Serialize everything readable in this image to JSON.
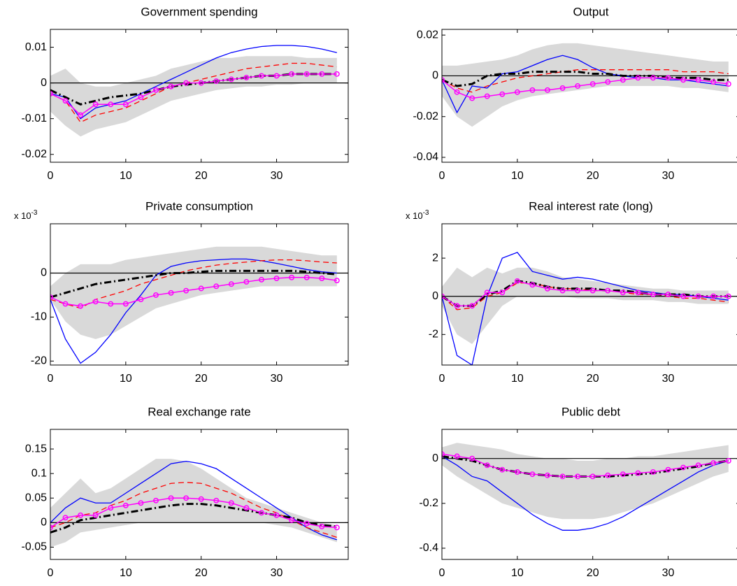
{
  "chart_data": [
    {
      "type": "line",
      "title": "Government spending",
      "x": [
        0,
        2,
        4,
        6,
        8,
        10,
        12,
        14,
        16,
        18,
        20,
        22,
        24,
        26,
        28,
        30,
        32,
        34,
        36,
        38
      ],
      "xlim": [
        0,
        39.5
      ],
      "xticks": [
        0,
        10,
        20,
        30
      ],
      "ylim": [
        -0.0222,
        0.015
      ],
      "yticks": [
        -0.02,
        -0.01,
        0,
        0.01
      ],
      "reference_line": 0,
      "band": {
        "color": "#d9d9d9",
        "lower": [
          -0.008,
          -0.012,
          -0.015,
          -0.013,
          -0.012,
          -0.011,
          -0.009,
          -0.007,
          -0.005,
          -0.004,
          -0.003,
          -0.002,
          -0.0015,
          -0.001,
          -0.001,
          -0.0005,
          -0.0005,
          0,
          0,
          0
        ],
        "upper": [
          0.002,
          0.004,
          0,
          -0.001,
          -0.001,
          0,
          0.001,
          0.002,
          0.004,
          0.005,
          0.006,
          0.007,
          0.007,
          0.0075,
          0.0075,
          0.0075,
          0.0075,
          0.007,
          0.007,
          0.007
        ]
      },
      "series": [
        {
          "color": "#0000ff",
          "style": "solid",
          "values": [
            -0.003,
            -0.004,
            -0.01,
            -0.007,
            -0.006,
            -0.005,
            -0.003,
            -0.001,
            0.001,
            0.003,
            0.005,
            0.007,
            0.0085,
            0.0095,
            0.0102,
            0.0105,
            0.0105,
            0.0102,
            0.0095,
            0.0085
          ]
        },
        {
          "color": "#ff0000",
          "style": "dashed",
          "values": [
            -0.003,
            -0.005,
            -0.011,
            -0.009,
            -0.008,
            -0.007,
            -0.005,
            -0.003,
            -0.001,
            0,
            0.001,
            0.002,
            0.003,
            0.004,
            0.0045,
            0.005,
            0.0055,
            0.0055,
            0.005,
            0.0045
          ]
        },
        {
          "color": "#000000",
          "style": "dashdot",
          "values": [
            -0.002,
            -0.004,
            -0.006,
            -0.005,
            -0.004,
            -0.0035,
            -0.003,
            -0.002,
            -0.001,
            -0.0005,
            0,
            0.0005,
            0.001,
            0.0015,
            0.002,
            0.002,
            0.0025,
            0.0025,
            0.0025,
            0.0025
          ]
        },
        {
          "color": "#ff00ff",
          "style": "markers",
          "values": [
            -0.003,
            -0.005,
            -0.009,
            -0.006,
            -0.006,
            -0.006,
            -0.004,
            -0.002,
            -0.001,
            0,
            0,
            0.0005,
            0.001,
            0.0015,
            0.002,
            0.002,
            0.0025,
            0.0025,
            0.0025,
            0.0025
          ]
        }
      ]
    },
    {
      "type": "line",
      "title": "Output",
      "x": [
        0,
        2,
        4,
        6,
        8,
        10,
        12,
        14,
        16,
        18,
        20,
        22,
        24,
        26,
        28,
        30,
        32,
        34,
        36,
        38
      ],
      "xlim": [
        0,
        39.5
      ],
      "xticks": [
        0,
        10,
        20,
        30
      ],
      "ylim": [
        -0.0424,
        0.0228
      ],
      "yticks": [
        -0.04,
        -0.02,
        0,
        0.02
      ],
      "reference_line": 0,
      "band": {
        "color": "#d9d9d9",
        "lower": [
          -0.01,
          -0.02,
          -0.025,
          -0.02,
          -0.015,
          -0.012,
          -0.01,
          -0.009,
          -0.008,
          -0.007,
          -0.006,
          -0.005,
          -0.005,
          -0.005,
          -0.005,
          -0.005,
          -0.006,
          -0.006,
          -0.007,
          -0.008
        ],
        "upper": [
          0.005,
          0.005,
          0.006,
          0.007,
          0.008,
          0.01,
          0.013,
          0.015,
          0.016,
          0.016,
          0.015,
          0.014,
          0.013,
          0.012,
          0.011,
          0.01,
          0.009,
          0.008,
          0.007,
          0.007
        ]
      },
      "series": [
        {
          "color": "#0000ff",
          "style": "solid",
          "values": [
            -0.002,
            -0.018,
            -0.005,
            -0.006,
            0.001,
            0.002,
            0.005,
            0.008,
            0.01,
            0.008,
            0.004,
            0.001,
            0,
            -0.001,
            -0.001,
            -0.002,
            -0.002,
            -0.003,
            -0.004,
            -0.005
          ]
        },
        {
          "color": "#ff0000",
          "style": "dashed",
          "values": [
            -0.002,
            -0.006,
            -0.008,
            -0.005,
            -0.003,
            -0.001,
            0,
            0.001,
            0.002,
            0.003,
            0.003,
            0.003,
            0.003,
            0.003,
            0.003,
            0.003,
            0.002,
            0.002,
            0.002,
            0.001
          ]
        },
        {
          "color": "#000000",
          "style": "dashdot",
          "values": [
            -0.002,
            -0.005,
            -0.004,
            0,
            0.001,
            0.001,
            0.002,
            0.002,
            0.002,
            0.002,
            0.001,
            0.001,
            0,
            0,
            0,
            -0.001,
            -0.001,
            -0.001,
            -0.002,
            -0.002
          ]
        },
        {
          "color": "#ff00ff",
          "style": "markers",
          "values": [
            -0.002,
            -0.008,
            -0.011,
            -0.01,
            -0.009,
            -0.008,
            -0.007,
            -0.007,
            -0.006,
            -0.005,
            -0.004,
            -0.003,
            -0.002,
            -0.001,
            -0.001,
            -0.001,
            -0.002,
            -0.002,
            -0.003,
            -0.004
          ]
        }
      ]
    },
    {
      "type": "line",
      "title": "Private consumption",
      "axis_multiplier": {
        "base": "x 10",
        "exponent": "-3"
      },
      "x": [
        0,
        2,
        4,
        6,
        8,
        10,
        12,
        14,
        16,
        18,
        20,
        22,
        24,
        26,
        28,
        30,
        32,
        34,
        36,
        38
      ],
      "xlim": [
        0,
        39.5
      ],
      "xticks": [
        0,
        10,
        20,
        30
      ],
      "ylim": [
        -20.9,
        11.2
      ],
      "yticks": [
        -20,
        -10,
        0
      ],
      "reference_line": 0,
      "band": {
        "color": "#d9d9d9",
        "lower": [
          -6,
          -11,
          -14,
          -15,
          -14,
          -12,
          -10,
          -8,
          -7,
          -6,
          -5,
          -4.5,
          -4,
          -3.5,
          -3,
          -3,
          -3,
          -3,
          -3,
          -3
        ],
        "upper": [
          -3,
          0,
          2,
          2,
          2,
          3,
          3.5,
          4,
          4.5,
          5,
          5.5,
          6,
          6,
          6,
          6,
          5.5,
          5,
          4.5,
          4,
          4
        ]
      },
      "series": [
        {
          "color": "#0000ff",
          "style": "solid",
          "values": [
            -6,
            -15,
            -20.5,
            -18,
            -14,
            -9,
            -5,
            -0.5,
            1.5,
            2.3,
            2.8,
            3,
            3.2,
            3.2,
            2.8,
            2.2,
            1.5,
            0.8,
            0.3,
            0
          ]
        },
        {
          "color": "#ff0000",
          "style": "dashed",
          "values": [
            -6,
            -7,
            -8,
            -6,
            -5,
            -4,
            -2.5,
            -1.5,
            -0.5,
            0.5,
            1.2,
            1.8,
            2.2,
            2.5,
            2.8,
            3,
            3,
            2.8,
            2.5,
            2.3
          ]
        },
        {
          "color": "#000000",
          "style": "dashdot",
          "values": [
            -5.5,
            -4.5,
            -3.5,
            -2.5,
            -2,
            -1.5,
            -1,
            -0.5,
            0,
            0,
            0.3,
            0.5,
            0.5,
            0.5,
            0.5,
            0.5,
            0.5,
            0.3,
            0,
            -0.3
          ]
        },
        {
          "color": "#ff00ff",
          "style": "markers",
          "values": [
            -5.5,
            -7,
            -7.5,
            -6.5,
            -7,
            -7,
            -6,
            -5,
            -4.5,
            -4,
            -3.5,
            -3,
            -2.5,
            -2,
            -1.5,
            -1.2,
            -1,
            -1,
            -1.2,
            -1.7
          ]
        }
      ]
    },
    {
      "type": "line",
      "title": "Real interest rate (long)",
      "axis_multiplier": {
        "base": "x 10",
        "exponent": "-3"
      },
      "x": [
        0,
        2,
        4,
        6,
        8,
        10,
        12,
        14,
        16,
        18,
        20,
        22,
        24,
        26,
        28,
        30,
        32,
        34,
        36,
        38
      ],
      "xlim": [
        0,
        39.5
      ],
      "xticks": [
        0,
        10,
        20,
        30
      ],
      "ylim": [
        -3.6,
        3.8
      ],
      "yticks": [
        -2,
        0,
        2
      ],
      "reference_line": 0,
      "band": {
        "color": "#d9d9d9",
        "lower": [
          -0.5,
          -2,
          -2.5,
          -1.5,
          -0.5,
          0,
          0,
          0,
          0,
          -0.1,
          -0.1,
          -0.1,
          -0.2,
          -0.2,
          -0.2,
          -0.3,
          -0.3,
          -0.4,
          -0.4,
          -0.4
        ],
        "upper": [
          0.5,
          1.5,
          1,
          1.5,
          1.2,
          1.5,
          1.5,
          1.3,
          1,
          0.9,
          0.8,
          0.7,
          0.6,
          0.5,
          0.4,
          0.4,
          0.3,
          0.3,
          0.3,
          0.3
        ]
      },
      "series": [
        {
          "color": "#0000ff",
          "style": "solid",
          "values": [
            0,
            -3.1,
            -3.6,
            0,
            2,
            2.3,
            1.3,
            1.1,
            0.9,
            1,
            0.9,
            0.7,
            0.5,
            0.3,
            0.2,
            0.1,
            0.1,
            0,
            -0.1,
            -0.2
          ]
        },
        {
          "color": "#ff0000",
          "style": "dashed",
          "values": [
            0,
            -0.7,
            -0.6,
            0,
            0.2,
            0.7,
            0.7,
            0.5,
            0.4,
            0.4,
            0.3,
            0.3,
            0.2,
            0.1,
            0.1,
            0,
            -0.1,
            -0.1,
            -0.2,
            -0.3
          ]
        },
        {
          "color": "#000000",
          "style": "dashdot",
          "values": [
            0,
            -0.5,
            -0.5,
            0.1,
            0.3,
            0.8,
            0.7,
            0.5,
            0.4,
            0.4,
            0.4,
            0.3,
            0.3,
            0.2,
            0.1,
            0.1,
            0.1,
            0,
            0,
            0
          ]
        },
        {
          "color": "#ff00ff",
          "style": "markers",
          "values": [
            0,
            -0.5,
            -0.5,
            0.2,
            0.2,
            0.8,
            0.6,
            0.4,
            0.3,
            0.3,
            0.3,
            0.3,
            0.2,
            0.2,
            0.1,
            0.1,
            0,
            0,
            0,
            0
          ]
        }
      ]
    },
    {
      "type": "line",
      "title": "Real exchange rate",
      "x": [
        0,
        2,
        4,
        6,
        8,
        10,
        12,
        14,
        16,
        18,
        20,
        22,
        24,
        26,
        28,
        30,
        32,
        34,
        36,
        38
      ],
      "xlim": [
        0,
        39.5
      ],
      "xticks": [
        0,
        10,
        20,
        30
      ],
      "ylim": [
        -0.075,
        0.19
      ],
      "yticks": [
        -0.05,
        0,
        0.05,
        0.1,
        0.15
      ],
      "reference_line": 0,
      "band": {
        "color": "#d9d9d9",
        "lower": [
          -0.05,
          -0.04,
          -0.02,
          -0.015,
          -0.01,
          -0.005,
          0,
          0,
          0,
          0,
          0,
          0,
          0,
          0,
          0,
          -0.005,
          -0.01,
          -0.02,
          -0.03,
          -0.04
        ],
        "upper": [
          0.03,
          0.06,
          0.09,
          0.06,
          0.07,
          0.09,
          0.11,
          0.13,
          0.13,
          0.125,
          0.11,
          0.09,
          0.07,
          0.05,
          0.04,
          0.03,
          0.02,
          0.01,
          0,
          -0.005
        ]
      },
      "series": [
        {
          "color": "#0000ff",
          "style": "solid",
          "values": [
            0,
            0.03,
            0.05,
            0.04,
            0.04,
            0.06,
            0.08,
            0.1,
            0.12,
            0.125,
            0.12,
            0.11,
            0.09,
            0.07,
            0.05,
            0.03,
            0.01,
            -0.01,
            -0.025,
            -0.035
          ]
        },
        {
          "color": "#ff0000",
          "style": "dashed",
          "values": [
            -0.01,
            0,
            0.015,
            0.02,
            0.035,
            0.045,
            0.06,
            0.07,
            0.08,
            0.082,
            0.08,
            0.07,
            0.06,
            0.045,
            0.03,
            0.02,
            0.005,
            -0.01,
            -0.02,
            -0.03
          ]
        },
        {
          "color": "#000000",
          "style": "dashdot",
          "values": [
            -0.02,
            -0.01,
            0.005,
            0.01,
            0.015,
            0.02,
            0.025,
            0.03,
            0.035,
            0.038,
            0.038,
            0.035,
            0.03,
            0.025,
            0.02,
            0.015,
            0.01,
            0,
            -0.005,
            -0.008
          ]
        },
        {
          "color": "#ff00ff",
          "style": "markers",
          "values": [
            -0.01,
            0.01,
            0.015,
            0.015,
            0.03,
            0.035,
            0.04,
            0.045,
            0.05,
            0.05,
            0.048,
            0.045,
            0.04,
            0.03,
            0.02,
            0.015,
            0.005,
            -0.002,
            -0.008,
            -0.01
          ]
        }
      ]
    },
    {
      "type": "line",
      "title": "Public debt",
      "x": [
        0,
        2,
        4,
        6,
        8,
        10,
        12,
        14,
        16,
        18,
        20,
        22,
        24,
        26,
        28,
        30,
        32,
        34,
        36,
        38
      ],
      "xlim": [
        0,
        39.5
      ],
      "xticks": [
        0,
        10,
        20,
        30
      ],
      "ylim": [
        -0.45,
        0.13
      ],
      "yticks": [
        -0.4,
        -0.2,
        0
      ],
      "reference_line": 0,
      "band": {
        "color": "#d9d9d9",
        "lower": [
          -0.03,
          -0.08,
          -0.12,
          -0.16,
          -0.2,
          -0.22,
          -0.24,
          -0.26,
          -0.27,
          -0.27,
          -0.27,
          -0.26,
          -0.24,
          -0.22,
          -0.2,
          -0.17,
          -0.14,
          -0.11,
          -0.08,
          -0.06
        ],
        "upper": [
          0.05,
          0.07,
          0.06,
          0.05,
          0.04,
          0.02,
          0.01,
          0,
          0,
          -0.01,
          -0.01,
          0,
          0,
          0.01,
          0.01,
          0.02,
          0.03,
          0.04,
          0.05,
          0.06
        ]
      },
      "series": [
        {
          "color": "#0000ff",
          "style": "solid",
          "values": [
            0.01,
            -0.03,
            -0.08,
            -0.1,
            -0.15,
            -0.2,
            -0.25,
            -0.29,
            -0.32,
            -0.32,
            -0.31,
            -0.29,
            -0.26,
            -0.22,
            -0.18,
            -0.14,
            -0.1,
            -0.06,
            -0.03,
            -0.01
          ]
        },
        {
          "color": "#000000",
          "style": "dashdot",
          "values": [
            0.01,
            0,
            -0.01,
            -0.03,
            -0.05,
            -0.06,
            -0.07,
            -0.075,
            -0.08,
            -0.08,
            -0.08,
            -0.08,
            -0.075,
            -0.07,
            -0.065,
            -0.055,
            -0.045,
            -0.035,
            -0.02,
            -0.01
          ]
        },
        {
          "color": "#ff00ff",
          "style": "markers",
          "values": [
            0.02,
            0.01,
            0,
            -0.03,
            -0.05,
            -0.06,
            -0.07,
            -0.075,
            -0.08,
            -0.08,
            -0.08,
            -0.075,
            -0.07,
            -0.065,
            -0.06,
            -0.05,
            -0.04,
            -0.03,
            -0.02,
            -0.01
          ]
        }
      ]
    }
  ]
}
